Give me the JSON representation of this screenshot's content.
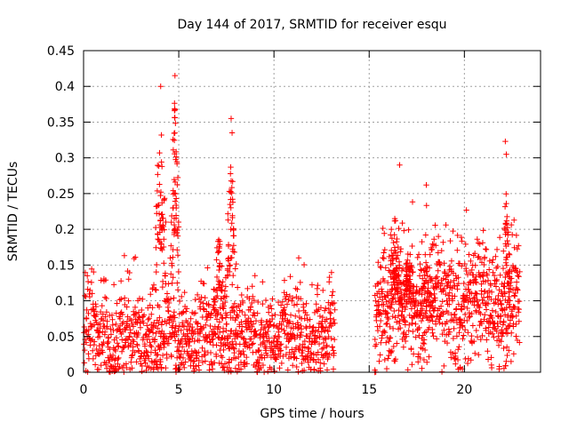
{
  "chart_data": {
    "type": "scatter",
    "title": "Day 144 of 2017, SRMTID for receiver esqu",
    "xlabel": "GPS time / hours",
    "ylabel": "SRMTID / TECUs",
    "xlim": [
      0,
      24
    ],
    "ylim": [
      0,
      0.45
    ],
    "xticks": [
      0,
      5,
      10,
      15,
      20
    ],
    "xtick_labels": [
      "0",
      "5",
      "10",
      "15",
      "20"
    ],
    "yticks": [
      0,
      0.05,
      0.1,
      0.15,
      0.2,
      0.25,
      0.3,
      0.35,
      0.4,
      0.45
    ],
    "ytick_labels": [
      "0",
      "0.05",
      "0.1",
      "0.15",
      "0.2",
      "0.25",
      "0.3",
      "0.35",
      "0.4",
      "0.45"
    ],
    "grid": true,
    "marker": "+",
    "color": "#ff0000",
    "segments": [
      {
        "start": 0.0,
        "end": 13.2,
        "n": 1200,
        "base": 0.05,
        "amp": 0.035
      },
      {
        "start": 15.3,
        "end": 22.9,
        "n": 820,
        "base": 0.1,
        "amp": 0.045
      }
    ],
    "peaks": [
      {
        "center": 4.05,
        "width": 0.35,
        "height": 0.3,
        "n": 60
      },
      {
        "center": 4.8,
        "width": 0.25,
        "height": 0.33,
        "n": 60
      },
      {
        "center": 7.1,
        "width": 0.3,
        "height": 0.15,
        "n": 40
      },
      {
        "center": 7.75,
        "width": 0.3,
        "height": 0.24,
        "n": 55
      },
      {
        "center": 16.3,
        "width": 0.4,
        "height": 0.17,
        "n": 60
      },
      {
        "center": 17.1,
        "width": 0.4,
        "height": 0.12,
        "n": 50
      },
      {
        "center": 18.0,
        "width": 0.4,
        "height": 0.1,
        "n": 40
      },
      {
        "center": 22.2,
        "width": 0.25,
        "height": 0.2,
        "n": 45
      }
    ],
    "outliers": [
      {
        "x": 4.05,
        "y": 0.4
      },
      {
        "x": 4.8,
        "y": 0.415
      },
      {
        "x": 7.75,
        "y": 0.355
      },
      {
        "x": 7.8,
        "y": 0.335
      },
      {
        "x": 22.15,
        "y": 0.323
      },
      {
        "x": 22.2,
        "y": 0.305
      },
      {
        "x": 16.6,
        "y": 0.29
      },
      {
        "x": 18.0,
        "y": 0.262
      },
      {
        "x": 11.3,
        "y": 0.16
      },
      {
        "x": 15.3,
        "y": 0.0
      },
      {
        "x": 15.3,
        "y": 0.003
      }
    ],
    "seed": 144
  }
}
